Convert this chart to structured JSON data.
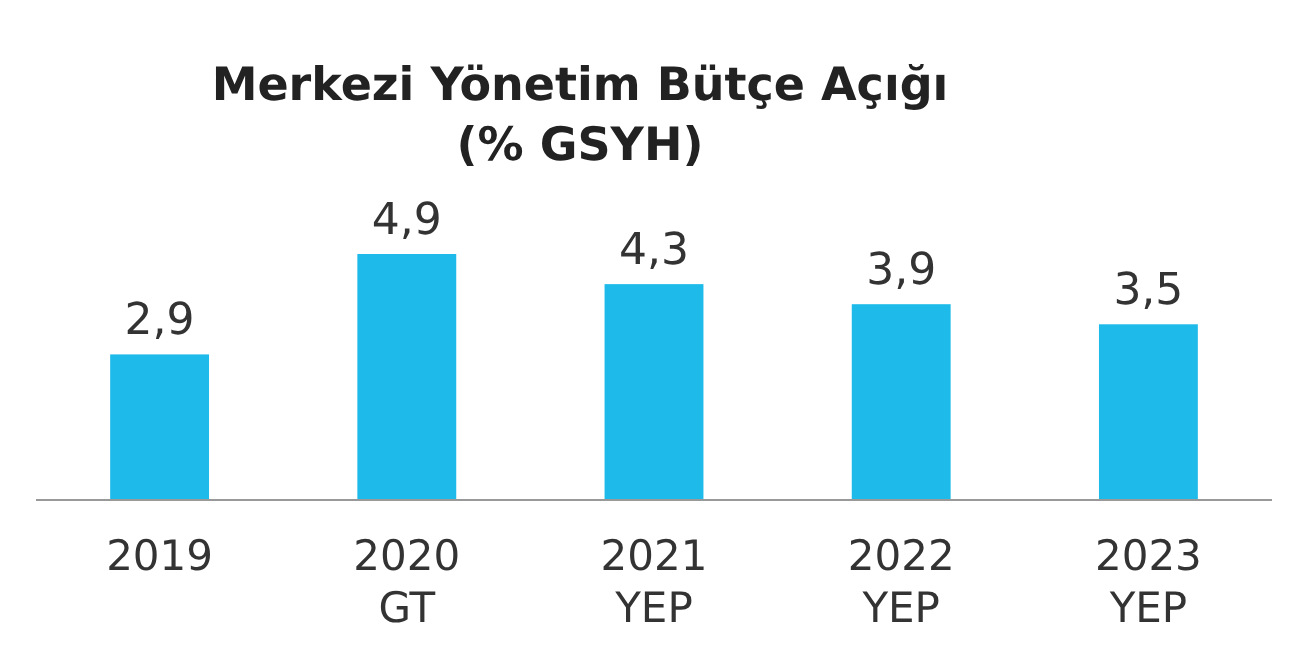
{
  "chart_data": {
    "type": "bar",
    "title": "Merkezi Yönetim Bütçe Açığı\n(% GSYH)",
    "categories": [
      "2019",
      "2020\nGT",
      "2021\nYEP",
      "2022\nYEP",
      "2023\nYEP"
    ],
    "values": [
      2.9,
      4.9,
      4.3,
      3.9,
      3.5
    ],
    "value_labels": [
      "2,9",
      "4,9",
      "4,3",
      "3,9",
      "3,5"
    ],
    "color": "#1ebbea"
  }
}
